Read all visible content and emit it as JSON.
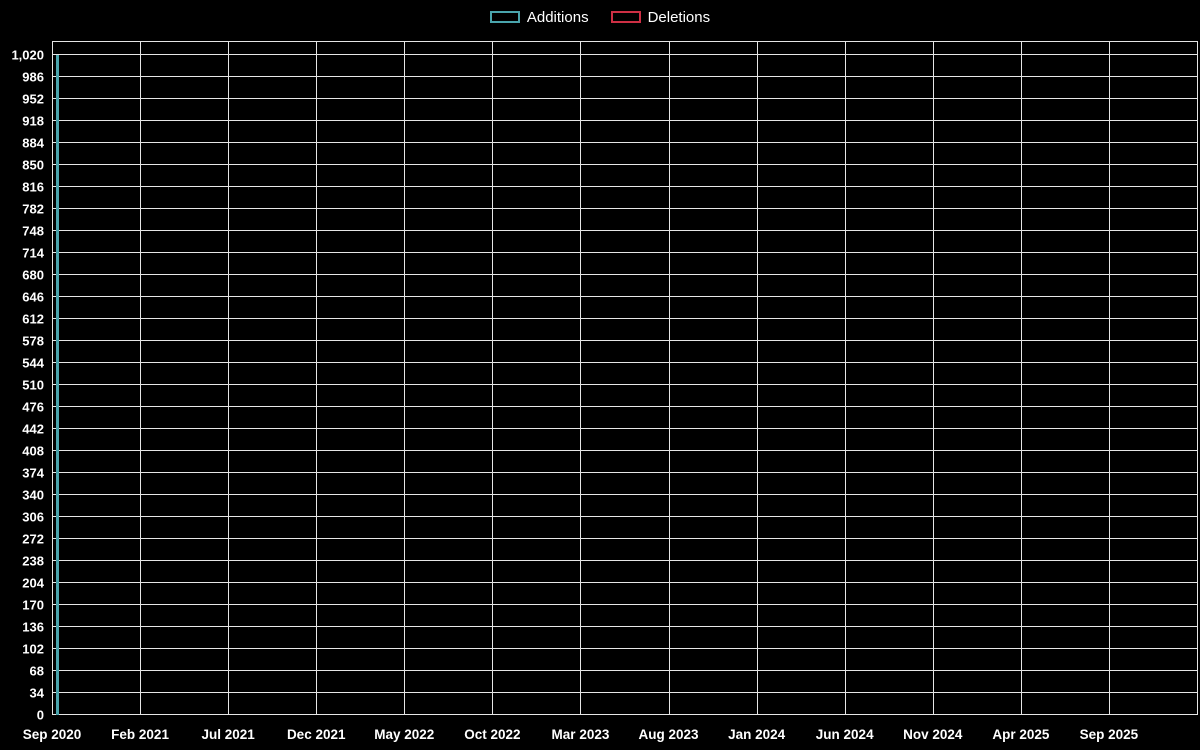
{
  "chart_data": {
    "type": "bar",
    "title": "",
    "xlabel": "",
    "ylabel": "",
    "legend": {
      "position": "top",
      "items": [
        {
          "label": "Additions",
          "color": "#4aa5ad"
        },
        {
          "label": "Deletions",
          "color": "#ce2f44"
        }
      ]
    },
    "x_tick_labels": [
      "Sep 2020",
      "Feb 2021",
      "Jul 2021",
      "Dec 2021",
      "May 2022",
      "Oct 2022",
      "Mar 2023",
      "Aug 2023",
      "Jan 2024",
      "Jun 2024",
      "Nov 2024",
      "Apr 2025",
      "Sep 2025"
    ],
    "y_tick_values": [
      0,
      34,
      68,
      102,
      136,
      170,
      204,
      238,
      272,
      306,
      340,
      374,
      408,
      442,
      476,
      510,
      544,
      578,
      612,
      646,
      680,
      714,
      748,
      782,
      816,
      850,
      884,
      918,
      952,
      986,
      1020
    ],
    "y_tick_labels": [
      "0",
      "34",
      "68",
      "102",
      "136",
      "170",
      "204",
      "238",
      "272",
      "306",
      "340",
      "374",
      "408",
      "442",
      "476",
      "510",
      "544",
      "578",
      "612",
      "646",
      "680",
      "714",
      "748",
      "782",
      "816",
      "850",
      "884",
      "918",
      "952",
      "986",
      "1,020"
    ],
    "ylim": [
      0,
      1042
    ],
    "grid": true,
    "colors": {
      "background": "#000000",
      "gridline": "#e6e6e6",
      "text": "#ffffff"
    },
    "series": [
      {
        "name": "Additions",
        "color": "#4aa5ad",
        "points": [
          {
            "x": "Sep 2020",
            "x_frac": 0.0035,
            "value": 1020
          }
        ]
      },
      {
        "name": "Deletions",
        "color": "#ce2f44",
        "points": []
      }
    ]
  }
}
